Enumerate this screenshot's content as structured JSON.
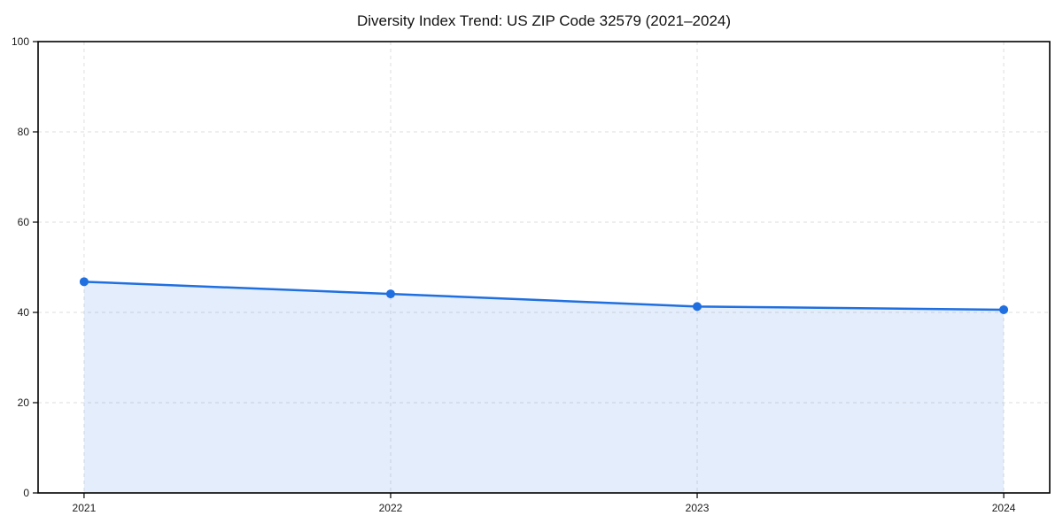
{
  "page": {
    "title": "Diversity Index Trend: US ZIP Code 32579 (2021–2024)"
  },
  "chart_data": {
    "type": "area",
    "title": "Diversity Index Trend: US ZIP Code 32579 (2021–2024)",
    "xlabel": "",
    "ylabel": "",
    "x": [
      2021,
      2022,
      2023,
      2024
    ],
    "series": [
      {
        "name": "Diversity Index",
        "values": [
          46.8,
          44.1,
          41.3,
          40.6
        ]
      }
    ],
    "xticks": [
      2021,
      2022,
      2023,
      2024
    ],
    "yticks": [
      0,
      20,
      40,
      60,
      80,
      100
    ],
    "xlim": [
      2020.85,
      2024.15
    ],
    "ylim": [
      0,
      100
    ],
    "grid": true,
    "grid_style": "dashed",
    "legend": false,
    "colors": {
      "line": "#1f6fe0",
      "marker": "#1f6fe0",
      "fill": "rgba(31,111,224,0.12)",
      "grid": "#dedede",
      "spine": "#000000",
      "tick_label": "#1a1a1a"
    }
  }
}
